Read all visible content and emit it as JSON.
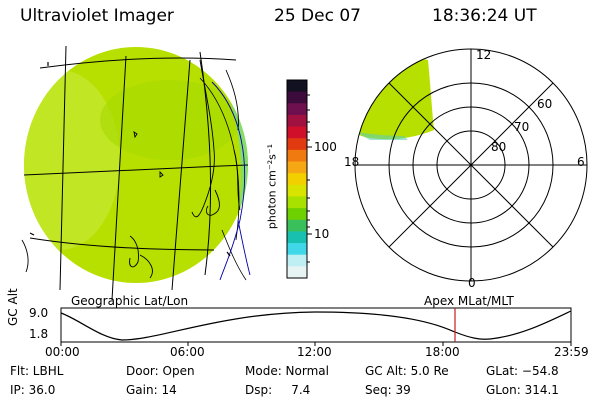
{
  "header": {
    "title": "Ultraviolet Imager",
    "date": "25 Dec 07",
    "time": "18:36:24 UT"
  },
  "colorbar": {
    "unit_label": "photon cm⁻²s⁻¹",
    "tick_labels": [
      "100",
      "10"
    ],
    "colors": [
      "#111122",
      "#3b0b3b",
      "#6e0f50",
      "#a01040",
      "#d0102a",
      "#e23a10",
      "#f07a10",
      "#f6a814",
      "#f2d000",
      "#d8e400",
      "#a8e000",
      "#6ed000",
      "#3ac05a",
      "#18c0b0",
      "#40d8e8",
      "#bfeff2",
      "#e8f4f4"
    ]
  },
  "globe_panel": {
    "caption": "Geographic Lat/Lon",
    "fill_color": "#b7e000"
  },
  "polar_panel": {
    "caption": "Apex MLat/MLT",
    "mlt_labels": {
      "top": "12",
      "left": "18",
      "right": "6",
      "bottom": "0"
    },
    "mlat_labels": [
      "60",
      "70",
      "80"
    ]
  },
  "timeseries": {
    "ylabel": "GC Alt",
    "y_ticks": [
      "9.0",
      "1.8"
    ],
    "x_ticks": [
      "00:00",
      "06:00",
      "12:00",
      "18:00",
      "23:59"
    ],
    "marker_color": "#c02020"
  },
  "footer": {
    "filter": "Flt: LBHL",
    "door": "Door: Open",
    "mode": "Mode: Normal",
    "gc_alt": "GC Alt: 5.0 Re",
    "glat": "GLat: −54.8",
    "ip": "IP: 36.0",
    "gain": "Gain: 14",
    "dsp": "Dsp:     7.4",
    "seq": "Seq: 39",
    "glon": "GLon: 314.1"
  }
}
